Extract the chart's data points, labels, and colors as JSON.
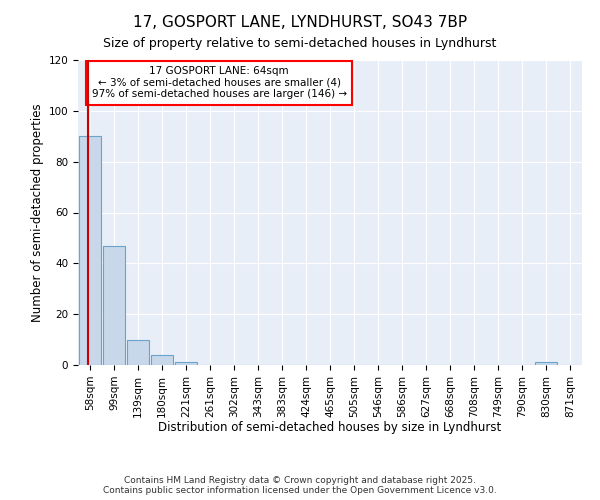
{
  "title1": "17, GOSPORT LANE, LYNDHURST, SO43 7BP",
  "title2": "Size of property relative to semi-detached houses in Lyndhurst",
  "xlabel": "Distribution of semi-detached houses by size in Lyndhurst",
  "ylabel": "Number of semi-detached properties",
  "bar_labels": [
    "58sqm",
    "99sqm",
    "139sqm",
    "180sqm",
    "221sqm",
    "261sqm",
    "302sqm",
    "343sqm",
    "383sqm",
    "424sqm",
    "465sqm",
    "505sqm",
    "546sqm",
    "586sqm",
    "627sqm",
    "668sqm",
    "708sqm",
    "749sqm",
    "790sqm",
    "830sqm",
    "871sqm"
  ],
  "bar_values": [
    90,
    47,
    10,
    4,
    1,
    0,
    0,
    0,
    0,
    0,
    0,
    0,
    0,
    0,
    0,
    0,
    0,
    0,
    0,
    1,
    0
  ],
  "bar_color": "#c8d8ea",
  "bar_edge_color": "#6aa3cc",
  "ylim": [
    0,
    120
  ],
  "yticks": [
    0,
    20,
    40,
    60,
    80,
    100,
    120
  ],
  "property_line_x": -0.07,
  "property_line_color": "#cc0000",
  "annotation_line1": "17 GOSPORT LANE: 64sqm",
  "annotation_line2": "← 3% of semi-detached houses are smaller (4)",
  "annotation_line3": "97% of semi-detached houses are larger (146) →",
  "footer1": "Contains HM Land Registry data © Crown copyright and database right 2025.",
  "footer2": "Contains public sector information licensed under the Open Government Licence v3.0.",
  "bg_color": "#e8eef8",
  "grid_color": "#ffffff",
  "title1_fontsize": 11,
  "title2_fontsize": 9,
  "axis_label_fontsize": 8.5,
  "tick_fontsize": 7.5,
  "annotation_fontsize": 7.5,
  "footer_fontsize": 6.5
}
